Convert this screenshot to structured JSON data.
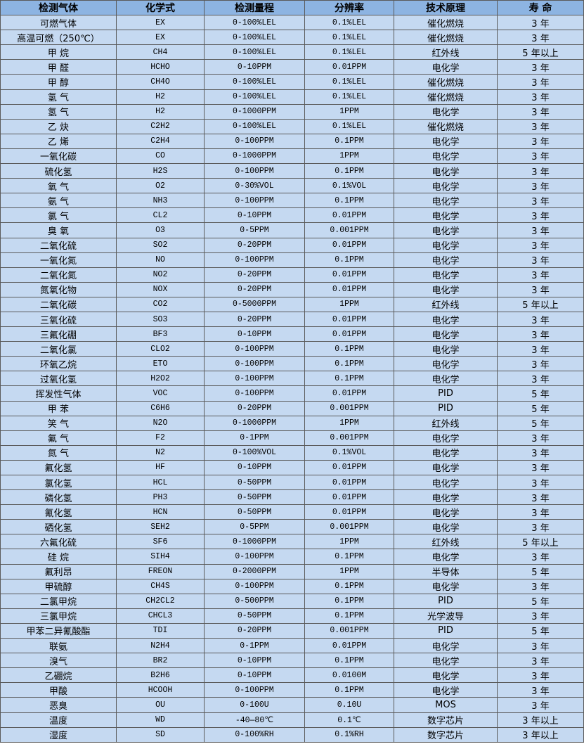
{
  "table": {
    "header_bg": "#8db4e2",
    "row_bg": "#c5d9f1",
    "headers": [
      "检测气体",
      "化学式",
      "检测量程",
      "分辨率",
      "技术原理",
      "寿 命"
    ],
    "rows": [
      [
        "可燃气体",
        "EX",
        "0-100%LEL",
        "0.1%LEL",
        "催化燃烧",
        "3 年"
      ],
      [
        "高温可燃（250℃）",
        "EX",
        "0-100%LEL",
        "0.1%LEL",
        "催化燃烧",
        "3 年"
      ],
      [
        "甲 烷",
        "CH4",
        "0-100%LEL",
        "0.1%LEL",
        "红外线",
        "5 年以上"
      ],
      [
        "甲 醛",
        "HCHO",
        "0-10PPM",
        "0.01PPM",
        "电化学",
        "3 年"
      ],
      [
        "甲 醇",
        "CH4O",
        "0-100%LEL",
        "0.1%LEL",
        "催化燃烧",
        "3 年"
      ],
      [
        "氢 气",
        "H2",
        "0-100%LEL",
        "0.1%LEL",
        "催化燃烧",
        "3 年"
      ],
      [
        "氢 气",
        "H2",
        "0-1000PPM",
        "1PPM",
        "电化学",
        "3 年"
      ],
      [
        "乙 炔",
        "C2H2",
        "0-100%LEL",
        "0.1%LEL",
        "催化燃烧",
        "3 年"
      ],
      [
        "乙 烯",
        "C2H4",
        "0-100PPM",
        "0.1PPM",
        "电化学",
        "3 年"
      ],
      [
        "一氧化碳",
        "CO",
        "0-1000PPM",
        "1PPM",
        "电化学",
        "3 年"
      ],
      [
        "硫化氢",
        "H2S",
        "0-100PPM",
        "0.1PPM",
        "电化学",
        "3 年"
      ],
      [
        "氧 气",
        "O2",
        "0-30%VOL",
        "0.1%VOL",
        "电化学",
        "3 年"
      ],
      [
        "氨 气",
        "NH3",
        "0-100PPM",
        "0.1PPM",
        "电化学",
        "3 年"
      ],
      [
        "氯 气",
        "CL2",
        "0-10PPM",
        "0.01PPM",
        "电化学",
        "3 年"
      ],
      [
        "臭 氧",
        "O3",
        "0-5PPM",
        "0.001PPM",
        "电化学",
        "3 年"
      ],
      [
        "二氧化硫",
        "SO2",
        "0-20PPM",
        "0.01PPM",
        "电化学",
        "3 年"
      ],
      [
        "一氧化氮",
        "NO",
        "0-100PPM",
        "0.1PPM",
        "电化学",
        "3 年"
      ],
      [
        "二氧化氮",
        "NO2",
        "0-20PPM",
        "0.01PPM",
        "电化学",
        "3 年"
      ],
      [
        "氮氧化物",
        "NOX",
        "0-20PPM",
        "0.01PPM",
        "电化学",
        "3 年"
      ],
      [
        "二氧化碳",
        "CO2",
        "0-5000PPM",
        "1PPM",
        "红外线",
        "5 年以上"
      ],
      [
        "三氧化硫",
        "SO3",
        "0-20PPM",
        "0.01PPM",
        "电化学",
        "3 年"
      ],
      [
        "三氟化硼",
        "BF3",
        "0-10PPM",
        "0.01PPM",
        "电化学",
        "3 年"
      ],
      [
        "二氧化氯",
        "CLO2",
        "0-100PPM",
        "0.1PPM",
        "电化学",
        "3 年"
      ],
      [
        "环氧乙烷",
        "ETO",
        "0-100PPM",
        "0.1PPM",
        "电化学",
        "3 年"
      ],
      [
        "过氧化氢",
        "H2O2",
        "0-100PPM",
        "0.1PPM",
        "电化学",
        "3 年"
      ],
      [
        "挥发性气体",
        "VOC",
        "0-100PPM",
        "0.01PPM",
        "PID",
        "5 年"
      ],
      [
        "甲 苯",
        "C6H6",
        "0-20PPM",
        "0.001PPM",
        "PID",
        "5 年"
      ],
      [
        "笑 气",
        "N2O",
        "0-1000PPM",
        "1PPM",
        "红外线",
        "5 年"
      ],
      [
        "氟 气",
        "F2",
        "0-1PPM",
        "0.001PPM",
        "电化学",
        "3 年"
      ],
      [
        "氮 气",
        "N2",
        "0-100%VOL",
        "0.1%VOL",
        "电化学",
        "3 年"
      ],
      [
        "氟化氢",
        "HF",
        "0-10PPM",
        "0.01PPM",
        "电化学",
        "3 年"
      ],
      [
        "氯化氢",
        "HCL",
        "0-50PPM",
        "0.01PPM",
        "电化学",
        "3 年"
      ],
      [
        "磷化氢",
        "PH3",
        "0-50PPM",
        "0.01PPM",
        "电化学",
        "3 年"
      ],
      [
        "氰化氢",
        "HCN",
        "0-50PPM",
        "0.01PPM",
        "电化学",
        "3 年"
      ],
      [
        "硒化氢",
        "SEH2",
        "0-5PPM",
        "0.001PPM",
        "电化学",
        "3 年"
      ],
      [
        "六氟化硫",
        "SF6",
        "0-1000PPM",
        "1PPM",
        "红外线",
        "5 年以上"
      ],
      [
        "硅 烷",
        "SIH4",
        "0-100PPM",
        "0.1PPM",
        "电化学",
        "3 年"
      ],
      [
        "氟利昂",
        "FREON",
        "0-2000PPM",
        "1PPM",
        "半导体",
        "5 年"
      ],
      [
        "甲硫醇",
        "CH4S",
        "0-100PPM",
        "0.1PPM",
        "电化学",
        "3 年"
      ],
      [
        "二氯甲烷",
        "CH2CL2",
        "0-500PPM",
        "0.1PPM",
        "PID",
        "5 年"
      ],
      [
        "三氯甲烷",
        "CHCL3",
        "0-50PPM",
        "0.1PPM",
        "光学波导",
        "3 年"
      ],
      [
        "甲苯二异氰酸酯",
        "TDI",
        "0-20PPM",
        "0.001PPM",
        "PID",
        "5 年"
      ],
      [
        "联氨",
        "N2H4",
        "0-1PPM",
        "0.01PPM",
        "电化学",
        "3 年"
      ],
      [
        "溴气",
        "BR2",
        "0-10PPM",
        "0.1PPM",
        "电化学",
        "3 年"
      ],
      [
        "乙硼烷",
        "B2H6",
        "0-10PPM",
        "0.0100M",
        "电化学",
        "3 年"
      ],
      [
        "甲酸",
        "HCOOH",
        "0-100PPM",
        "0.1PPM",
        "电化学",
        "3 年"
      ],
      [
        "恶臭",
        "OU",
        "0-100U",
        "0.10U",
        "MOS",
        "3 年"
      ],
      [
        "温度",
        "WD",
        "-40—80℃",
        "0.1℃",
        "数字芯片",
        "3 年以上"
      ],
      [
        "湿度",
        "SD",
        "0-100%RH",
        "0.1%RH",
        "数字芯片",
        "3 年以上"
      ]
    ]
  }
}
